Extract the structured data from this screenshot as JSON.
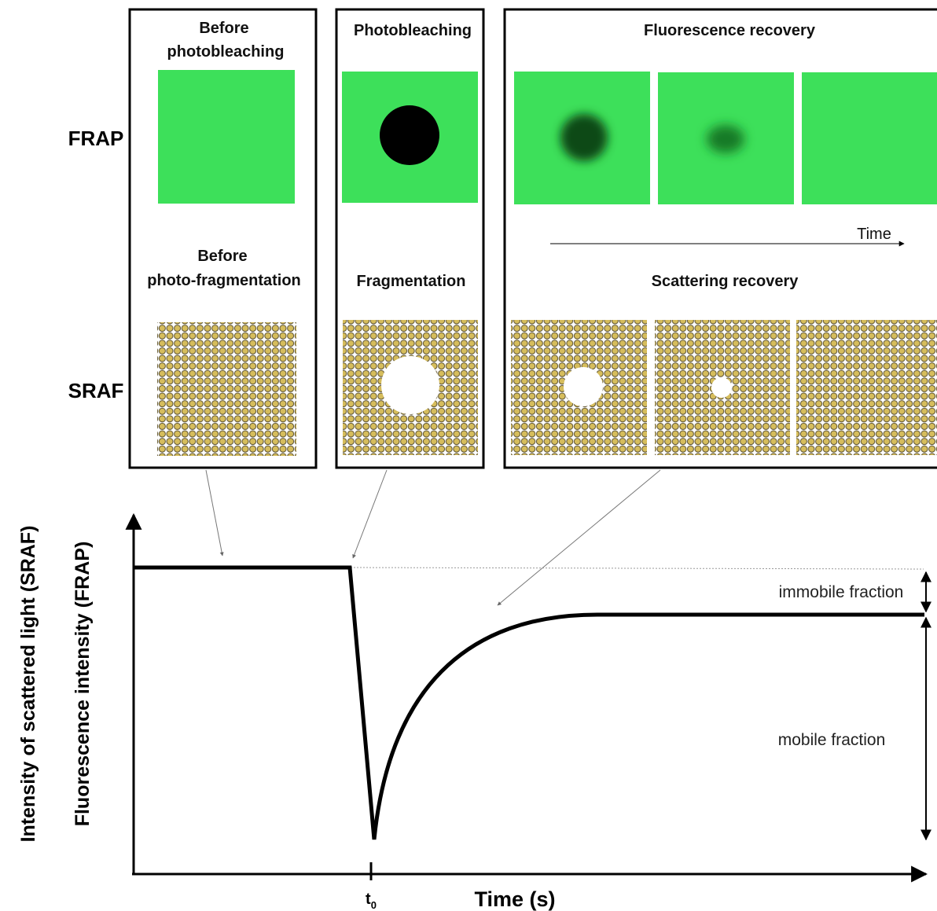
{
  "rows": {
    "frap": "FRAP",
    "sraf": "SRAF"
  },
  "panels": [
    {
      "top_title": [
        "Before",
        "photobleaching"
      ],
      "bottom_title": [
        "Before",
        "photo-fragmentation"
      ]
    },
    {
      "top_title": [
        "Photobleaching"
      ],
      "bottom_title": [
        "Fragmentation"
      ]
    },
    {
      "top_title": [
        "Fluorescence recovery"
      ],
      "bottom_title": [
        "Scattering recovery"
      ],
      "arrow_label": "Time"
    }
  ],
  "graph": {
    "y_labels": [
      "Intensity of scattered light (SRAF)",
      "Fluorescence intensity (FRAP)"
    ],
    "x_label": "Time (s)",
    "tick": {
      "base": "t",
      "sub": "0"
    },
    "annotations": [
      "immobile fraction",
      "mobile fraction"
    ]
  }
}
